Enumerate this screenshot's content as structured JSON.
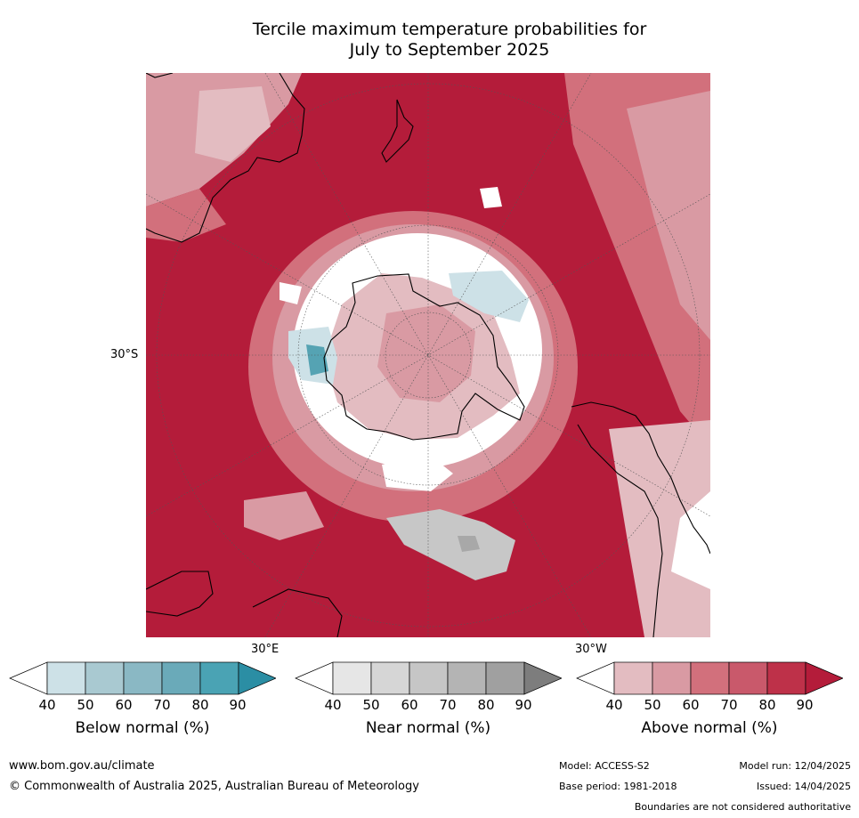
{
  "title": {
    "line1": "Tercile maximum temperature probabilities for",
    "line2": "July to September 2025"
  },
  "map": {
    "projection": "south-polar-stereographic",
    "colors": {
      "ocean_deep": "#b41c3a",
      "above_80": "#c9465a",
      "above_70": "#d2707c",
      "above_60": "#d99aa3",
      "above_50": "#e3bcc1",
      "neutral": "#ffffff",
      "near_60": "#c7c7c7",
      "near_70": "#a8a8a8",
      "below_50": "#cde1e7",
      "below_60": "#8fbac6",
      "below_70": "#55a3b3",
      "coast": "#000000",
      "grid": "#555555"
    },
    "lat_label": "30°S",
    "lon_labels": [
      {
        "text": "30°E"
      },
      {
        "text": "30°W"
      }
    ]
  },
  "colorbars": [
    {
      "name": "below-normal",
      "title": "Below normal (%)",
      "ticks": [
        "40",
        "50",
        "60",
        "70",
        "80",
        "90"
      ],
      "colors": [
        "#ffffff",
        "#cde1e7",
        "#a9c9d1",
        "#8ab8c4",
        "#6aaab9",
        "#4aa3b4",
        "#2b8ea4"
      ]
    },
    {
      "name": "near-normal",
      "title": "Near normal (%)",
      "ticks": [
        "40",
        "50",
        "60",
        "70",
        "80",
        "90"
      ],
      "colors": [
        "#ffffff",
        "#e6e6e6",
        "#d6d6d6",
        "#c6c6c6",
        "#b4b4b4",
        "#a0a0a0",
        "#7d7d7d"
      ]
    },
    {
      "name": "above-normal",
      "title": "Above normal (%)",
      "ticks": [
        "40",
        "50",
        "60",
        "70",
        "80",
        "90"
      ],
      "colors": [
        "#ffffff",
        "#e3bcc1",
        "#d99aa3",
        "#d2707c",
        "#c9596b",
        "#be3149",
        "#b41c3a"
      ]
    }
  ],
  "footer": {
    "website": "www.bom.gov.au/climate",
    "copyright": "© Commonwealth of Australia 2025, Australian Bureau of Meteorology",
    "model": "Model: ACCESS-S2",
    "base_period": "Base period: 1981-2018",
    "model_run": "Model run: 12/04/2025",
    "issued": "Issued: 14/04/2025",
    "disclaimer": "Boundaries are not considered authoritative"
  }
}
